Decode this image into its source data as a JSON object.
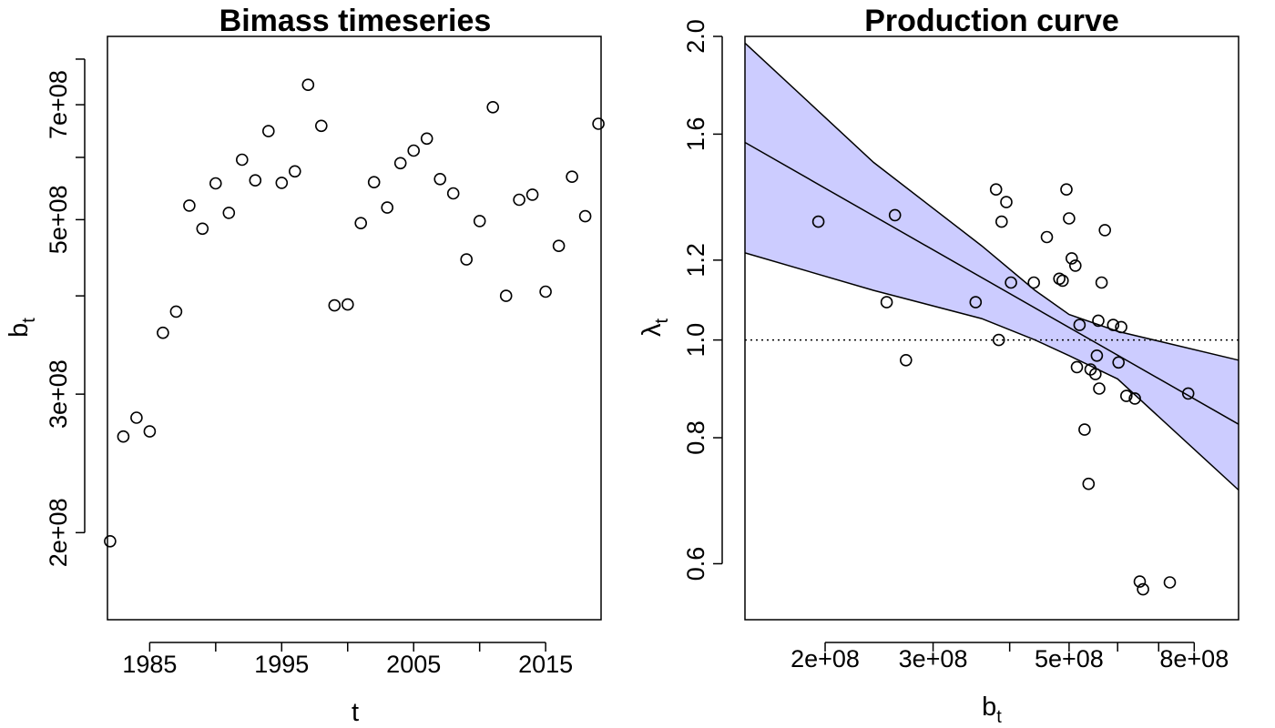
{
  "chart_data": [
    {
      "type": "scatter",
      "title": "Bimass timeseries",
      "xlabel": "t",
      "ylabel_main": "b",
      "ylabel_sub": "t",
      "y_scale": "log",
      "xlim": [
        1981.8,
        2019.2
      ],
      "ylim": [
        155000000.0,
        855000000.0
      ],
      "x_ticks": [
        1985,
        1995,
        2005,
        2015
      ],
      "x_tick_labels": [
        "1985",
        "1995",
        "2005",
        "2015"
      ],
      "y_ticks": [
        200000000.0,
        300000000.0,
        500000000.0,
        700000000.0
      ],
      "y_tick_labels": [
        "2e+08",
        "3e+08",
        "5e+08",
        "7e+08"
      ],
      "y_minor_ticks": [
        400000000.0,
        600000000.0,
        800000000.0
      ],
      "x": [
        1982,
        1983,
        1984,
        1985,
        1986,
        1987,
        1988,
        1989,
        1990,
        1991,
        1992,
        1993,
        1994,
        1995,
        1996,
        1997,
        1998,
        1999,
        2000,
        2001,
        2002,
        2003,
        2004,
        2005,
        2006,
        2007,
        2008,
        2009,
        2010,
        2011,
        2012,
        2013,
        2014,
        2015,
        2016,
        2017,
        2018,
        2019
      ],
      "y": [
        195000000.0,
        265000000.0,
        280000000.0,
        269000000.0,
        359000000.0,
        382000000.0,
        521000000.0,
        487000000.0,
        556000000.0,
        510000000.0,
        596000000.0,
        561000000.0,
        648000000.0,
        557000000.0,
        576000000.0,
        742000000.0,
        658000000.0,
        389000000.0,
        390000000.0,
        495000000.0,
        558000000.0,
        518000000.0,
        590000000.0,
        612000000.0,
        634000000.0,
        563000000.0,
        540000000.0,
        445000000.0,
        498000000.0,
        695000000.0,
        400000000.0,
        530000000.0,
        538000000.0,
        405000000.0,
        463000000.0,
        567000000.0,
        505000000.0,
        662000000.0
      ]
    },
    {
      "type": "scatter",
      "title": "Production curve",
      "xlabel_main": "b",
      "xlabel_sub": "t",
      "ylabel_main": "λ",
      "ylabel_sub": "t",
      "x_scale": "log",
      "y_scale": "log",
      "xlim": [
        148000000.0,
        945000000.0
      ],
      "ylim": [
        0.528,
        2.0
      ],
      "x_ticks": [
        200000000.0,
        300000000.0,
        500000000.0,
        800000000.0
      ],
      "x_tick_labels": [
        "2e+08",
        "3e+08",
        "5e+08",
        "8e+08"
      ],
      "x_minor_ticks": [
        400000000.0,
        600000000.0,
        700000000.0
      ],
      "y_ticks": [
        0.6,
        0.8,
        1.0,
        1.2,
        1.6,
        2.0
      ],
      "y_tick_labels": [
        "0.6",
        "0.8",
        "1.0",
        "1.2",
        "1.6",
        "2.0"
      ],
      "reference_line": {
        "y": 1.0,
        "style": "dotted"
      },
      "fit_line": {
        "x": [
          148000000.0,
          945000000.0
        ],
        "y": [
          1.57,
          0.825
        ]
      },
      "confidence_band": {
        "x": [
          148000000.0,
          240000000.0,
          360000000.0,
          440000000.0,
          500000000.0,
          600000000.0,
          945000000.0
        ],
        "lower": [
          1.22,
          1.12,
          1.05,
          1.0,
          0.965,
          0.915,
          0.71
        ],
        "upper": [
          1.97,
          1.5,
          1.24,
          1.12,
          1.06,
          1.02,
          0.955
        ]
      },
      "band_color": "#ccccff",
      "x": [
        195000000.0,
        252000000.0,
        260000000.0,
        271000000.0,
        352000000.0,
        380000000.0,
        384000000.0,
        388000000.0,
        395000000.0,
        402000000.0,
        438000000.0,
        460000000.0,
        482000000.0,
        488000000.0,
        495000000.0,
        500000000.0,
        505000000.0,
        512000000.0,
        515000000.0,
        520000000.0,
        530000000.0,
        538000000.0,
        542000000.0,
        552000000.0,
        555000000.0,
        558000000.0,
        560000000.0,
        565000000.0,
        572000000.0,
        590000000.0,
        602000000.0,
        608000000.0,
        620000000.0,
        640000000.0,
        652000000.0,
        660000000.0,
        730000000.0,
        782000000.0
      ],
      "y": [
        1.31,
        1.09,
        1.33,
        0.955,
        1.09,
        1.41,
        1.0,
        1.31,
        1.37,
        1.14,
        1.14,
        1.265,
        1.15,
        1.145,
        1.41,
        1.32,
        1.205,
        1.185,
        0.94,
        1.035,
        0.815,
        0.72,
        0.935,
        0.925,
        0.965,
        1.045,
        0.895,
        1.14,
        1.285,
        1.035,
        0.95,
        1.03,
        0.88,
        0.875,
        0.576,
        0.566,
        0.575,
        0.885
      ]
    }
  ]
}
